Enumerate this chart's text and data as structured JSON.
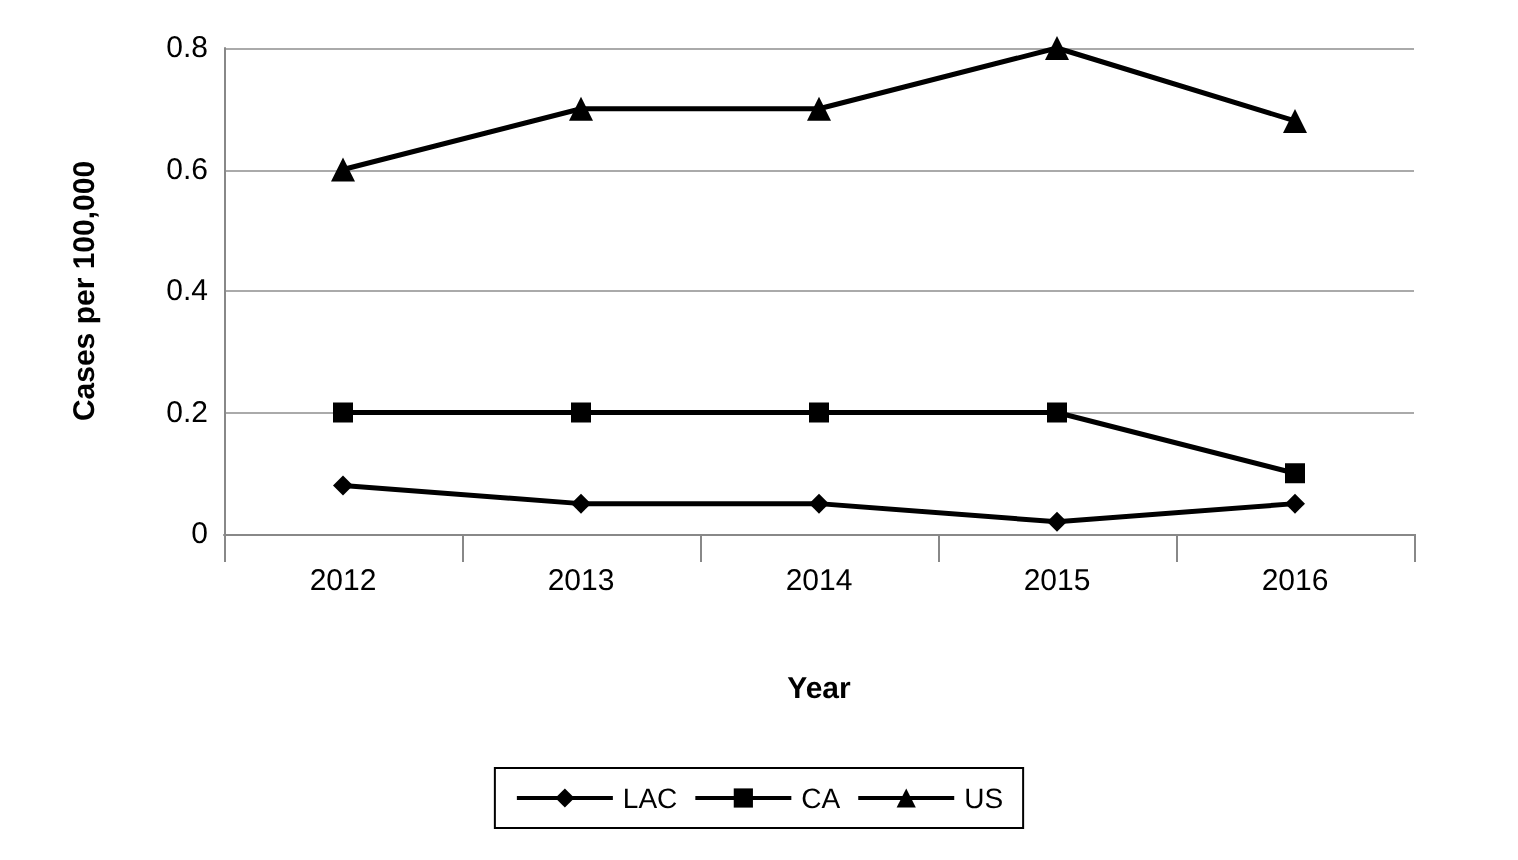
{
  "chart_data": {
    "type": "line",
    "xlabel": "Year",
    "ylabel": "Cases per 100,000",
    "categories": [
      "2012",
      "2013",
      "2014",
      "2015",
      "2016"
    ],
    "series": [
      {
        "name": "LAC",
        "color": "#000000",
        "marker": "diamond",
        "values": [
          0.08,
          0.05,
          0.05,
          0.02,
          0.05
        ]
      },
      {
        "name": "CA",
        "color": "#000000",
        "marker": "square",
        "values": [
          0.2,
          0.2,
          0.2,
          0.2,
          0.1
        ]
      },
      {
        "name": "US",
        "color": "#000000",
        "marker": "triangle",
        "values": [
          0.6,
          0.7,
          0.7,
          0.8,
          0.68
        ]
      }
    ],
    "ylim": [
      0,
      0.8
    ],
    "yticks": [
      0,
      0.2,
      0.4,
      0.6,
      0.8
    ],
    "grid": "y",
    "legend": "bottom",
    "line_style": "solid"
  }
}
